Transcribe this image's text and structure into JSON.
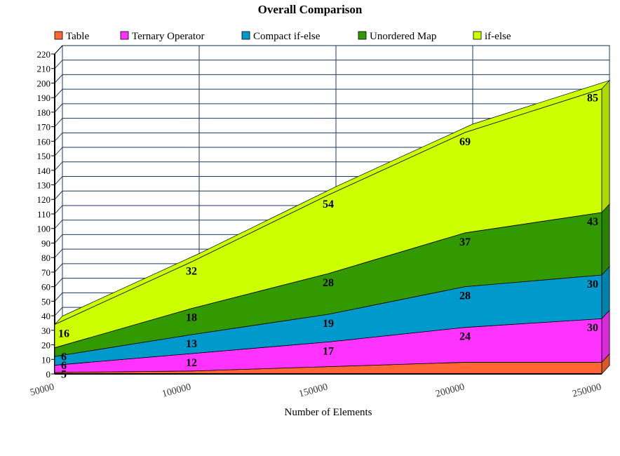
{
  "chart_data": {
    "type": "area",
    "stacked": true,
    "title": "Overall Comparison",
    "xlabel": "Number of Elements",
    "ylabel": "",
    "x": [
      50000,
      100000,
      150000,
      200000,
      250000
    ],
    "x_tick_labels": [
      "50000",
      "100000",
      "150000",
      "200000",
      "250000"
    ],
    "ylim": [
      0,
      220
    ],
    "y_ticks": [
      0,
      10,
      20,
      30,
      40,
      50,
      60,
      70,
      80,
      90,
      100,
      110,
      120,
      130,
      140,
      150,
      160,
      170,
      180,
      190,
      200,
      210,
      220
    ],
    "grid": true,
    "legend_position": "top",
    "series": [
      {
        "name": "Table",
        "color": "#ff6633",
        "values": [
          1,
          2,
          5,
          8,
          8
        ],
        "show_labels": false
      },
      {
        "name": "Ternary Operator",
        "color": "#ff33ff",
        "values": [
          5,
          12,
          17,
          24,
          30
        ],
        "show_labels": true
      },
      {
        "name": "Compact if-else",
        "color": "#0099cc",
        "values": [
          6,
          13,
          19,
          28,
          30
        ],
        "show_labels": true
      },
      {
        "name": "Unordered Map",
        "color": "#339900",
        "values": [
          6,
          18,
          28,
          37,
          43
        ],
        "show_labels": true
      },
      {
        "name": "if-else",
        "color": "#ccff00",
        "values": [
          16,
          32,
          54,
          69,
          85
        ],
        "show_labels": true
      }
    ]
  }
}
